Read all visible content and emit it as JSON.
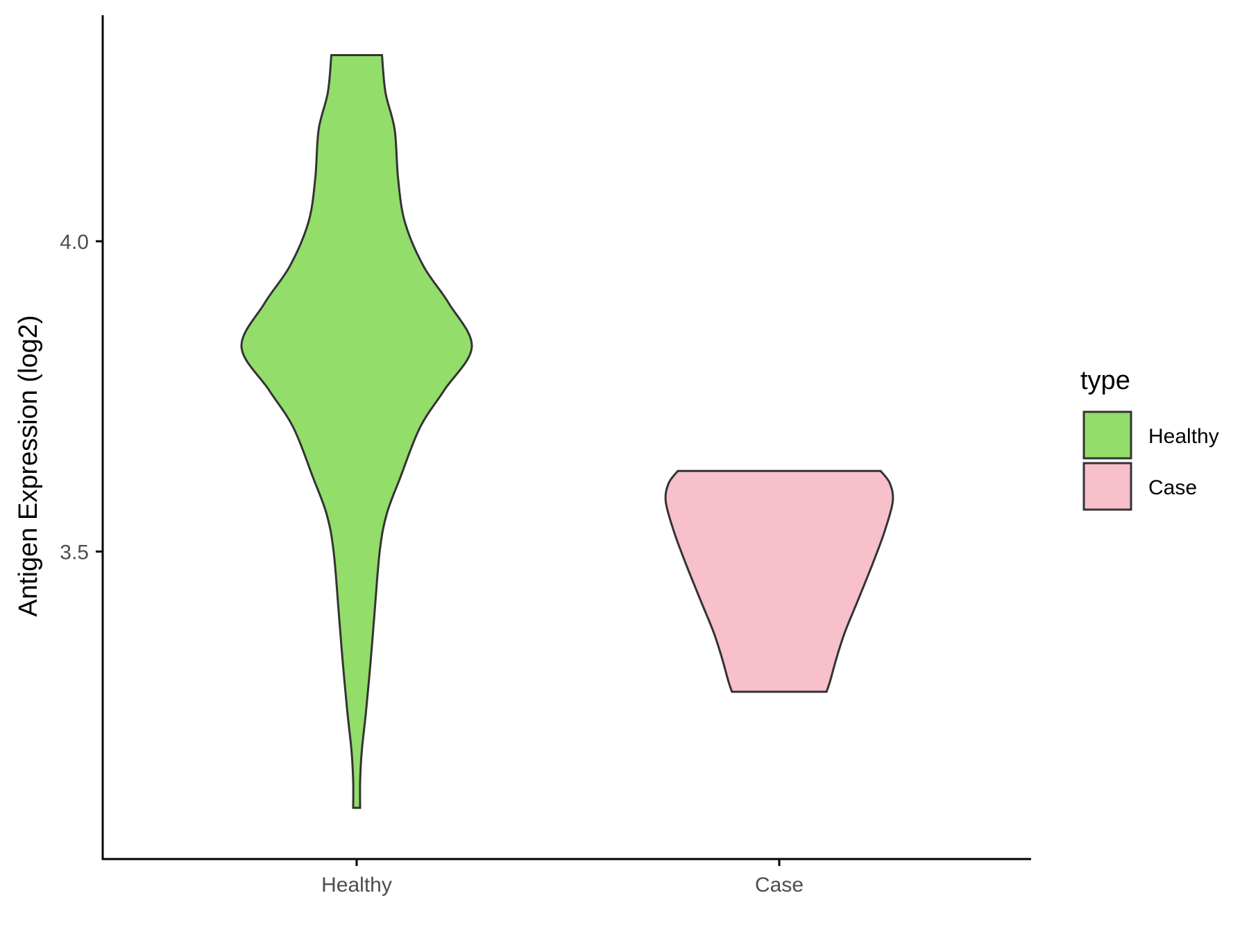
{
  "chart_data": {
    "type": "violin",
    "title": "",
    "xlabel": "",
    "ylabel": "Antigen Expression (log2)",
    "ylim": [
      3.0,
      4.36
    ],
    "y_ticks": [
      3.5,
      4.0
    ],
    "y_tick_labels": [
      "3.5",
      "4.0"
    ],
    "categories": [
      "Healthy",
      "Case"
    ],
    "grid": false,
    "legend": {
      "title": "type",
      "position": "right",
      "entries": [
        {
          "label": "Healthy",
          "color": "#93dd6b"
        },
        {
          "label": "Case",
          "color": "#f7c0cb"
        }
      ]
    },
    "series": [
      {
        "category": "Healthy",
        "color": "#93dd6b",
        "min": 3.087,
        "max": 4.3,
        "density_profile": [
          [
            3.087,
            0.03
          ],
          [
            3.13,
            0.03
          ],
          [
            3.18,
            0.045
          ],
          [
            3.24,
            0.08
          ],
          [
            3.32,
            0.12
          ],
          [
            3.4,
            0.155
          ],
          [
            3.5,
            0.2
          ],
          [
            3.56,
            0.26
          ],
          [
            3.62,
            0.38
          ],
          [
            3.7,
            0.55
          ],
          [
            3.76,
            0.76
          ],
          [
            3.83,
            1.0
          ],
          [
            3.9,
            0.8
          ],
          [
            3.96,
            0.58
          ],
          [
            4.03,
            0.42
          ],
          [
            4.1,
            0.36
          ],
          [
            4.18,
            0.33
          ],
          [
            4.24,
            0.25
          ],
          [
            4.3,
            0.22
          ]
        ]
      },
      {
        "category": "Case",
        "color": "#f7c0cb",
        "min": 3.274,
        "max": 3.63,
        "density_profile": [
          [
            3.274,
            0.41
          ],
          [
            3.29,
            0.44
          ],
          [
            3.33,
            0.5
          ],
          [
            3.37,
            0.57
          ],
          [
            3.42,
            0.68
          ],
          [
            3.48,
            0.81
          ],
          [
            3.53,
            0.91
          ],
          [
            3.58,
            0.985
          ],
          [
            3.61,
            0.96
          ],
          [
            3.63,
            0.88
          ]
        ]
      }
    ]
  }
}
